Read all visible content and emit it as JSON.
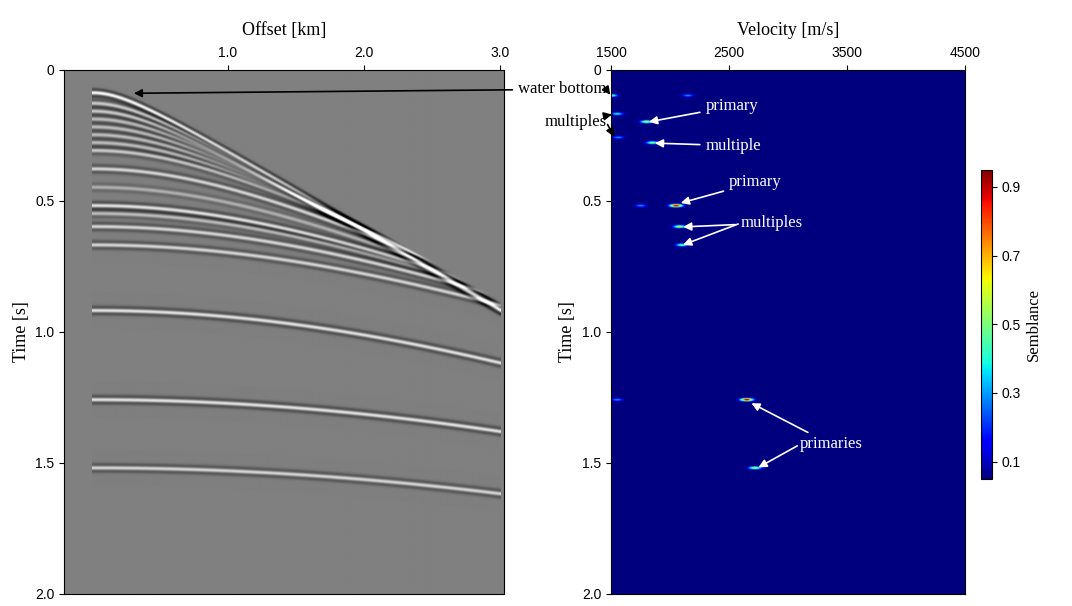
{
  "chart_data": [
    {
      "type": "seismic_gather",
      "xlabel": "Offset [km]",
      "ylabel": "Time [s]",
      "xlim": [
        -0.2,
        3.03
      ],
      "ylim": [
        2.0,
        0
      ],
      "xticks": [
        1.0,
        2.0,
        3.0
      ],
      "yticks": [
        0,
        0.5,
        1.0,
        1.5,
        2.0
      ],
      "offset_range": [
        0,
        3.0
      ],
      "events": [
        {
          "time": 0.09,
          "velocity": 3300,
          "amplitude": 1.0
        },
        {
          "time": 0.13,
          "velocity": 3300,
          "amplitude": 0.6
        },
        {
          "time": 0.16,
          "velocity": 3300,
          "amplitude": 0.6
        },
        {
          "time": 0.19,
          "velocity": 3400,
          "amplitude": 0.5
        },
        {
          "time": 0.22,
          "velocity": 3500,
          "amplitude": 0.5
        },
        {
          "time": 0.25,
          "velocity": 3600,
          "amplitude": 0.5
        },
        {
          "time": 0.28,
          "velocity": 3700,
          "amplitude": 0.5
        },
        {
          "time": 0.31,
          "velocity": 3800,
          "amplitude": 0.6
        },
        {
          "time": 0.38,
          "velocity": 4000,
          "amplitude": 0.7
        },
        {
          "time": 0.45,
          "velocity": 4200,
          "amplitude": 0.4
        },
        {
          "time": 0.52,
          "velocity": 4500,
          "amplitude": 0.8
        },
        {
          "time": 0.55,
          "velocity": 4600,
          "amplitude": 0.5
        },
        {
          "time": 0.6,
          "velocity": 4800,
          "amplitude": 0.7
        },
        {
          "time": 0.67,
          "velocity": 5000,
          "amplitude": 0.7
        },
        {
          "time": 0.92,
          "velocity": 4700,
          "amplitude": 0.8
        },
        {
          "time": 1.26,
          "velocity": 5300,
          "amplitude": 0.8
        },
        {
          "time": 1.52,
          "velocity": 5400,
          "amplitude": 0.7
        }
      ]
    },
    {
      "type": "heatmap",
      "xlabel": "Velocity [m/s]",
      "ylabel": "Time [s]",
      "xlim": [
        1500,
        4500
      ],
      "ylim": [
        2.0,
        0
      ],
      "xticks": [
        1500,
        2500,
        3500,
        4500
      ],
      "yticks": [
        0,
        0.5,
        1.0,
        1.5,
        2.0
      ],
      "peaks": [
        {
          "time": 0.1,
          "velocity": 1500,
          "semblance": 0.5
        },
        {
          "time": 0.1,
          "velocity": 2150,
          "semblance": 0.3
        },
        {
          "time": 0.17,
          "velocity": 1550,
          "semblance": 0.4
        },
        {
          "time": 0.2,
          "velocity": 1800,
          "semblance": 0.6
        },
        {
          "time": 0.26,
          "velocity": 1560,
          "semblance": 0.3
        },
        {
          "time": 0.28,
          "velocity": 1850,
          "semblance": 0.55
        },
        {
          "time": 0.52,
          "velocity": 1750,
          "semblance": 0.3
        },
        {
          "time": 0.52,
          "velocity": 2050,
          "semblance": 0.95
        },
        {
          "time": 0.6,
          "velocity": 2080,
          "semblance": 0.6
        },
        {
          "time": 0.67,
          "velocity": 2100,
          "semblance": 0.5
        },
        {
          "time": 1.26,
          "velocity": 1550,
          "semblance": 0.3
        },
        {
          "time": 1.26,
          "velocity": 2650,
          "semblance": 0.95
        },
        {
          "time": 1.52,
          "velocity": 2720,
          "semblance": 0.6
        }
      ],
      "colorbar": {
        "label": "Semblance",
        "range": [
          0.05,
          0.95
        ],
        "ticks": [
          0.1,
          0.3,
          0.5,
          0.7,
          0.9
        ]
      },
      "annotations": [
        {
          "text": "water bottom",
          "color": "black",
          "points": [
            [
              1500,
              0.1
            ]
          ],
          "gather_points": [
            [
              0.3,
              0.09
            ]
          ]
        },
        {
          "text": "multiples",
          "color": "black",
          "points": [
            [
              1520,
              0.17
            ],
            [
              1530,
              0.26
            ]
          ]
        },
        {
          "text": "primary",
          "color": "white",
          "points": [
            [
              1810,
              0.2
            ]
          ]
        },
        {
          "text": "multiple",
          "color": "white",
          "points": [
            [
              1860,
              0.28
            ]
          ]
        },
        {
          "text": "primary",
          "color": "white",
          "points": [
            [
              2080,
              0.51
            ]
          ]
        },
        {
          "text": "multiples",
          "color": "white",
          "points": [
            [
              2100,
              0.6
            ],
            [
              2100,
              0.67
            ]
          ]
        },
        {
          "text": "primaries",
          "color": "white",
          "points": [
            [
              2680,
              1.27
            ],
            [
              2740,
              1.52
            ]
          ]
        }
      ]
    }
  ]
}
